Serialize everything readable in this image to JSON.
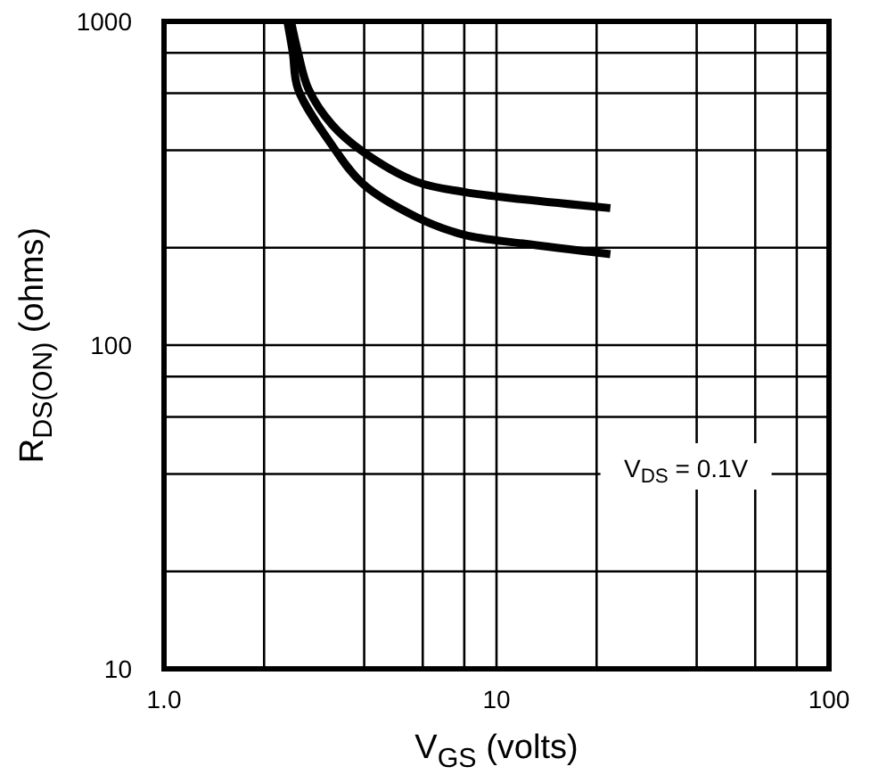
{
  "chart_data": {
    "type": "line",
    "xlabel": "V$_{GS}$ (volts)",
    "ylabel": "R$_{DS(ON)}$ (ohms)",
    "log": "xy",
    "grid": true,
    "marker": "none",
    "line_style": "solid",
    "xlim": [
      1,
      100
    ],
    "ylim": [
      10,
      1000
    ],
    "xticks": [
      {
        "value": 1,
        "label": "1.0"
      },
      {
        "value": 2,
        "label": null
      },
      {
        "value": 4,
        "label": null
      },
      {
        "value": 6,
        "label": null
      },
      {
        "value": 8,
        "label": null
      },
      10,
      {
        "value": 20,
        "label": null
      },
      {
        "value": 40,
        "label": null
      },
      {
        "value": 60,
        "label": null
      },
      {
        "value": 80,
        "label": null
      },
      100
    ],
    "yticks": [
      10,
      {
        "value": 20,
        "label": null
      },
      {
        "value": 40,
        "label": null
      },
      {
        "value": 60,
        "label": null
      },
      {
        "value": 80,
        "label": null
      },
      100,
      {
        "value": 200,
        "label": null
      },
      {
        "value": 400,
        "label": null
      },
      {
        "value": 600,
        "label": null
      },
      {
        "value": 800,
        "label": null
      },
      1000
    ],
    "series": [
      {
        "color": "#000000",
        "x": [
          2.41,
          2.53,
          2.72,
          3.2,
          3.95,
          5.73,
          8,
          12,
          22
        ],
        "values": [
          1000,
          800,
          618,
          480,
          397,
          320,
          297,
          282,
          265
        ]
      },
      {
        "color": "#000000",
        "x": [
          2.35,
          2.44,
          2.53,
          3.24,
          3.95,
          5.73,
          8,
          12,
          22
        ],
        "values": [
          1000,
          800,
          618,
          407,
          316,
          249,
          219,
          206,
          191
        ]
      }
    ],
    "annotations": [
      "V$_{DS}$ = 0.1V"
    ]
  }
}
